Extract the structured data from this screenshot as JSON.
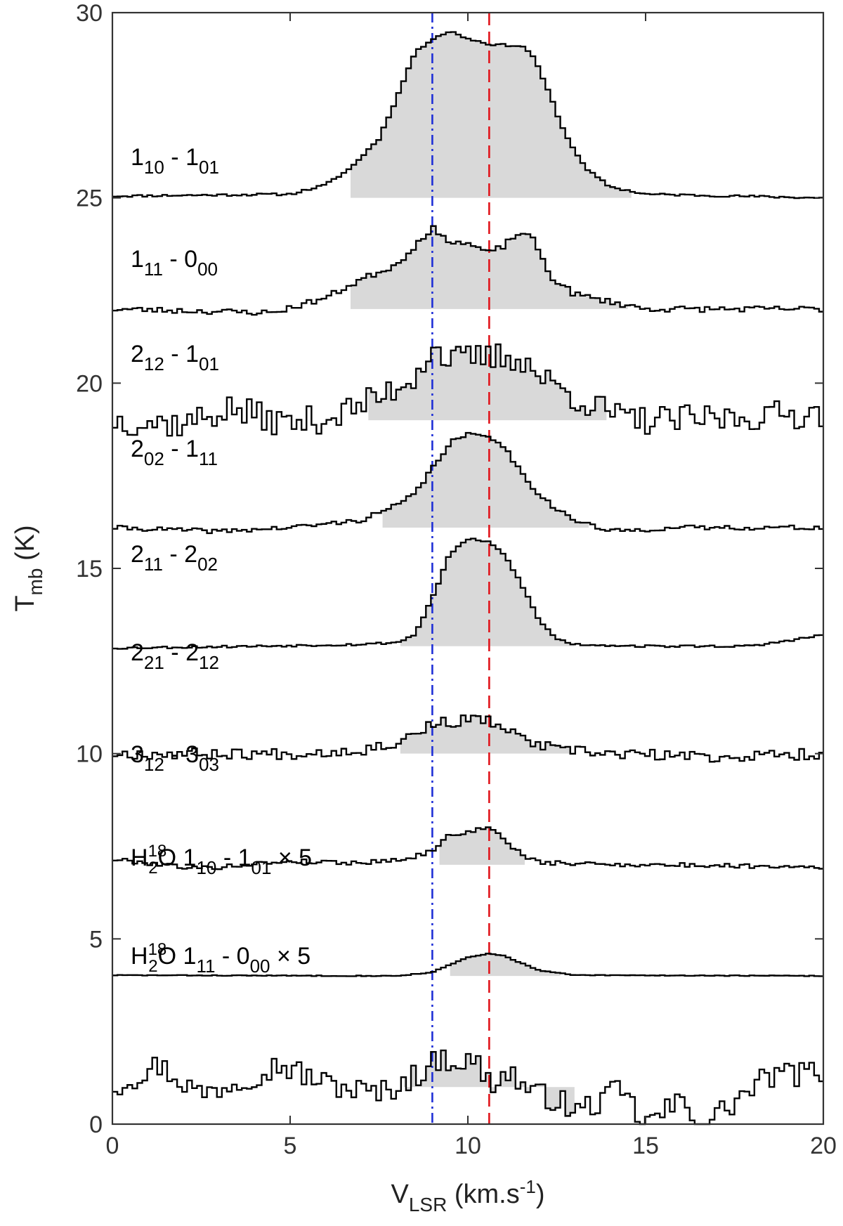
{
  "chart_data": {
    "type": "line",
    "title": "",
    "xlabel": {
      "main": "V",
      "sub": "LSR",
      "rest": " (km.s",
      "sup": "-1",
      "end": ")"
    },
    "ylabel": {
      "main": "T",
      "sub": "mb",
      "rest": " (K)"
    },
    "xlim": [
      0,
      20
    ],
    "ylim": [
      0,
      30
    ],
    "xticks": [
      "0",
      "5",
      "10",
      "15",
      "20"
    ],
    "yticks": [
      "0",
      "5",
      "10",
      "15",
      "20",
      "25",
      "30"
    ],
    "grid": false,
    "reference_lines": [
      {
        "x": 9.0,
        "color": "#1f2fd6",
        "style": "dash-dot"
      },
      {
        "x": 10.6,
        "color": "#e0141b",
        "style": "dashed"
      }
    ],
    "colors": {
      "spectrum": "#000000",
      "fill": "#d9d9d9",
      "frame": "#333333"
    },
    "series": [
      {
        "label": {
          "prefix": "",
          "level_a": "1",
          "sub_a": "10",
          "sep": " - ",
          "level_b": "1",
          "sub_b": "01",
          "suffix": ""
        },
        "baseline": 25.0,
        "fill_range": [
          6.7,
          14.6
        ],
        "noise": 0.03,
        "seed": 11,
        "knots": [
          [
            0,
            25.05
          ],
          [
            5,
            25.1
          ],
          [
            6.0,
            25.35
          ],
          [
            6.7,
            25.8
          ],
          [
            7.5,
            26.6
          ],
          [
            8.0,
            27.7
          ],
          [
            8.5,
            28.9
          ],
          [
            9.0,
            29.3
          ],
          [
            9.5,
            29.5
          ],
          [
            10.0,
            29.3
          ],
          [
            10.6,
            29.15
          ],
          [
            11.5,
            29.1
          ],
          [
            11.8,
            28.9
          ],
          [
            12.3,
            27.8
          ],
          [
            12.7,
            26.8
          ],
          [
            13.3,
            25.8
          ],
          [
            14.0,
            25.3
          ],
          [
            15,
            25.1
          ],
          [
            20,
            25.0
          ]
        ]
      },
      {
        "label": {
          "prefix": "",
          "level_a": "1",
          "sub_a": "11",
          "sep": " - ",
          "level_b": "0",
          "sub_b": "00",
          "suffix": ""
        },
        "baseline": 22.0,
        "fill_range": [
          6.7,
          14.5
        ],
        "noise": 0.08,
        "seed": 23,
        "knots": [
          [
            0,
            22.0
          ],
          [
            4.5,
            21.9
          ],
          [
            6.0,
            22.3
          ],
          [
            7.0,
            22.8
          ],
          [
            8.0,
            23.2
          ],
          [
            8.5,
            23.7
          ],
          [
            9.0,
            24.2
          ],
          [
            9.3,
            23.9
          ],
          [
            9.8,
            23.8
          ],
          [
            10.2,
            23.7
          ],
          [
            10.6,
            23.5
          ],
          [
            11.0,
            23.7
          ],
          [
            11.5,
            24.1
          ],
          [
            11.9,
            23.8
          ],
          [
            12.3,
            22.9
          ],
          [
            13.0,
            22.4
          ],
          [
            14.0,
            22.2
          ],
          [
            15,
            22.0
          ],
          [
            20,
            22.0
          ]
        ]
      },
      {
        "label": {
          "prefix": "",
          "level_a": "2",
          "sub_a": "12",
          "sep": " - ",
          "level_b": "1",
          "sub_b": "01",
          "suffix": ""
        },
        "baseline": 19.0,
        "fill_range": [
          7.2,
          13.9
        ],
        "noise": 0.4,
        "seed": 37,
        "knots": [
          [
            0,
            19.0
          ],
          [
            2,
            18.9
          ],
          [
            3.3,
            19.3
          ],
          [
            5,
            18.9
          ],
          [
            6.2,
            19.1
          ],
          [
            7.5,
            19.6
          ],
          [
            8.5,
            20.2
          ],
          [
            9.0,
            21.0
          ],
          [
            9.5,
            20.6
          ],
          [
            10.6,
            20.7
          ],
          [
            11.5,
            20.7
          ],
          [
            12.0,
            20.2
          ],
          [
            12.7,
            19.8
          ],
          [
            13.5,
            19.4
          ],
          [
            14.5,
            19.0
          ],
          [
            16,
            19.0
          ],
          [
            18,
            19.1
          ],
          [
            20,
            19.2
          ]
        ]
      },
      {
        "label": {
          "prefix": "",
          "level_a": "2",
          "sub_a": "02",
          "sep": " - ",
          "level_b": "1",
          "sub_b": "11",
          "suffix": ""
        },
        "baseline": 16.1,
        "fill_range": [
          7.6,
          13.4
        ],
        "noise": 0.06,
        "seed": 41,
        "knots": [
          [
            0,
            16.1
          ],
          [
            3,
            16.0
          ],
          [
            5,
            16.1
          ],
          [
            7,
            16.3
          ],
          [
            8.0,
            16.7
          ],
          [
            8.5,
            17.0
          ],
          [
            9.0,
            17.7
          ],
          [
            9.5,
            18.4
          ],
          [
            10.0,
            18.6
          ],
          [
            10.6,
            18.6
          ],
          [
            11.0,
            18.3
          ],
          [
            11.5,
            17.6
          ],
          [
            12.0,
            17.0
          ],
          [
            12.5,
            16.6
          ],
          [
            13.0,
            16.3
          ],
          [
            14.0,
            16.0
          ],
          [
            16,
            16.1
          ],
          [
            20,
            16.1
          ]
        ]
      },
      {
        "label": {
          "prefix": "",
          "level_a": "2",
          "sub_a": "11",
          "sep": " - ",
          "level_b": "2",
          "sub_b": "02",
          "suffix": ""
        },
        "baseline": 12.9,
        "fill_range": [
          8.1,
          13.0
        ],
        "noise": 0.03,
        "seed": 53,
        "knots": [
          [
            0,
            12.85
          ],
          [
            4,
            12.9
          ],
          [
            7,
            12.95
          ],
          [
            8.0,
            13.0
          ],
          [
            8.5,
            13.2
          ],
          [
            9.0,
            14.2
          ],
          [
            9.5,
            15.4
          ],
          [
            10.0,
            15.8
          ],
          [
            10.6,
            15.7
          ],
          [
            11.0,
            15.4
          ],
          [
            11.5,
            14.6
          ],
          [
            12.0,
            13.6
          ],
          [
            12.5,
            13.1
          ],
          [
            13,
            12.95
          ],
          [
            15,
            12.9
          ],
          [
            18,
            12.9
          ],
          [
            20,
            13.2
          ]
        ]
      },
      {
        "label": {
          "prefix": "",
          "level_a": "2",
          "sub_a": "21",
          "sep": " - ",
          "level_b": "2",
          "sub_b": "12",
          "suffix": ""
        },
        "baseline": 10.0,
        "fill_range": [
          8.1,
          13.0
        ],
        "noise": 0.15,
        "seed": 67,
        "knots": [
          [
            0,
            10.0
          ],
          [
            5,
            10.0
          ],
          [
            7,
            10.1
          ],
          [
            8,
            10.3
          ],
          [
            9.0,
            10.8
          ],
          [
            10.0,
            10.9
          ],
          [
            10.6,
            10.9
          ],
          [
            11.5,
            10.4
          ],
          [
            12.5,
            10.1
          ],
          [
            14,
            10.0
          ],
          [
            17,
            9.9
          ],
          [
            20,
            10.0
          ]
        ]
      },
      {
        "label": {
          "prefix": "",
          "level_a": "3",
          "sub_a": "12",
          "sep": " - ",
          "level_b": "3",
          "sub_b": "03",
          "suffix": ""
        },
        "baseline": 7.0,
        "fill_range": [
          9.2,
          11.6
        ],
        "noise": 0.06,
        "seed": 79,
        "knots": [
          [
            0,
            7.15
          ],
          [
            2.5,
            6.9
          ],
          [
            5,
            7.1
          ],
          [
            7,
            7.05
          ],
          [
            8.5,
            7.2
          ],
          [
            9.0,
            7.4
          ],
          [
            9.5,
            7.8
          ],
          [
            10.0,
            7.9
          ],
          [
            10.6,
            8.0
          ],
          [
            11.0,
            7.7
          ],
          [
            11.5,
            7.3
          ],
          [
            12,
            7.05
          ],
          [
            15,
            7.0
          ],
          [
            20,
            6.95
          ]
        ]
      },
      {
        "label": {
          "prefix": "H",
          "prefix_sub": "2",
          "prefix_sup": "18",
          "prefix_rest": "O ",
          "level_a": "1",
          "sub_a": "10",
          "sep": " - ",
          "level_b": "1",
          "sub_b": "01",
          "suffix": " × 5"
        },
        "baseline": 4.0,
        "fill_range": [
          9.5,
          12.6
        ],
        "noise": 0.01,
        "seed": 83,
        "knots": [
          [
            0,
            4.02
          ],
          [
            8,
            4.0
          ],
          [
            9.0,
            4.1
          ],
          [
            9.5,
            4.3
          ],
          [
            10.0,
            4.5
          ],
          [
            10.6,
            4.6
          ],
          [
            11.0,
            4.55
          ],
          [
            11.5,
            4.35
          ],
          [
            12.0,
            4.15
          ],
          [
            13,
            4.02
          ],
          [
            20,
            4.0
          ]
        ]
      },
      {
        "label": {
          "prefix": "H",
          "prefix_sub": "2",
          "prefix_sup": "18",
          "prefix_rest": "O ",
          "level_a": "1",
          "sub_a": "11",
          "sep": " - ",
          "level_b": "0",
          "sub_b": "00",
          "suffix": " × 5"
        },
        "baseline": 1.0,
        "fill_range": [
          8.2,
          13.0
        ],
        "noise": 0.35,
        "seed": 97,
        "knots": [
          [
            0,
            1.0
          ],
          [
            1.3,
            1.6
          ],
          [
            2.5,
            0.8
          ],
          [
            4.7,
            1.6
          ],
          [
            6,
            1.1
          ],
          [
            7.5,
            0.8
          ],
          [
            8.5,
            1.3
          ],
          [
            9.3,
            1.8
          ],
          [
            10.3,
            1.6
          ],
          [
            10.6,
            1.1
          ],
          [
            11.2,
            1.4
          ],
          [
            11.8,
            0.8
          ],
          [
            12.5,
            0.7
          ],
          [
            13.0,
            0.3
          ],
          [
            14.3,
            0.9
          ],
          [
            15.0,
            0.0
          ],
          [
            16.0,
            0.6
          ],
          [
            16.7,
            0.0
          ],
          [
            17.5,
            0.6
          ],
          [
            18.5,
            1.3
          ],
          [
            20,
            1.4
          ]
        ]
      }
    ]
  }
}
